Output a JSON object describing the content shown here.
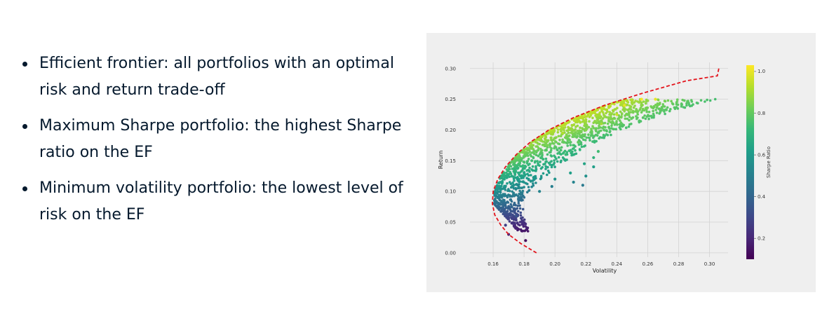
{
  "bullets": [
    "Efficient frontier: all portfolios with an optimal risk and return trade-off",
    "Maximum Sharpe portfolio: the highest Sharpe ratio on the EF",
    "Minimum volatility portfolio: the lowest level of risk on the EF"
  ],
  "chart_data": {
    "type": "scatter",
    "xlabel": "Volatility",
    "ylabel": "Return",
    "xlim": [
      0.145,
      0.312
    ],
    "ylim": [
      -0.007,
      0.31
    ],
    "x_ticks": [
      "0.16",
      "0.18",
      "0.20",
      "0.22",
      "0.24",
      "0.26",
      "0.28",
      "0.30"
    ],
    "y_ticks": [
      "0.00",
      "0.05",
      "0.10",
      "0.15",
      "0.20",
      "0.25",
      "0.30"
    ],
    "grid": true,
    "colorbar": {
      "label": "Sharpe Ratio",
      "range": [
        0.1,
        1.03
      ],
      "ticks": [
        "0.2",
        "0.4",
        "0.6",
        "0.8",
        "1.0"
      ],
      "colormap": [
        "#440154",
        "#482878",
        "#3e4989",
        "#31688e",
        "#26828e",
        "#1f9e89",
        "#35b779",
        "#6ece58",
        "#b5de2b",
        "#fde725"
      ]
    },
    "frontier": {
      "color": "#e3141c",
      "style": "dashed",
      "points": [
        [
          0.188,
          0.0
        ],
        [
          0.178,
          0.015
        ],
        [
          0.17,
          0.03
        ],
        [
          0.165,
          0.045
        ],
        [
          0.161,
          0.062
        ],
        [
          0.1595,
          0.08
        ],
        [
          0.16,
          0.1
        ],
        [
          0.163,
          0.12
        ],
        [
          0.168,
          0.14
        ],
        [
          0.175,
          0.16
        ],
        [
          0.184,
          0.18
        ],
        [
          0.196,
          0.2
        ],
        [
          0.212,
          0.22
        ],
        [
          0.232,
          0.24
        ],
        [
          0.257,
          0.26
        ],
        [
          0.285,
          0.28
        ],
        [
          0.305,
          0.288
        ],
        [
          0.306,
          0.3
        ]
      ]
    },
    "scatter_sample": [
      [
        0.17,
        0.03,
        0.2
      ],
      [
        0.181,
        0.02,
        0.12
      ],
      [
        0.168,
        0.045,
        0.28
      ],
      [
        0.175,
        0.06,
        0.35
      ],
      [
        0.172,
        0.075,
        0.4
      ],
      [
        0.178,
        0.09,
        0.45
      ],
      [
        0.19,
        0.1,
        0.52
      ],
      [
        0.2,
        0.12,
        0.58
      ],
      [
        0.21,
        0.13,
        0.62
      ],
      [
        0.22,
        0.125,
        0.57
      ],
      [
        0.225,
        0.14,
        0.62
      ],
      [
        0.219,
        0.145,
        0.64
      ],
      [
        0.207,
        0.16,
        0.73
      ],
      [
        0.215,
        0.18,
        0.8
      ],
      [
        0.22,
        0.2,
        0.86
      ],
      [
        0.23,
        0.21,
        0.9
      ],
      [
        0.24,
        0.225,
        0.96
      ],
      [
        0.245,
        0.24,
        1.0
      ],
      [
        0.256,
        0.25,
        1.02
      ],
      [
        0.265,
        0.25,
        1.0
      ],
      [
        0.195,
        0.175,
        0.84
      ],
      [
        0.205,
        0.195,
        0.92
      ],
      [
        0.185,
        0.15,
        0.74
      ],
      [
        0.18,
        0.13,
        0.64
      ],
      [
        0.176,
        0.11,
        0.53
      ],
      [
        0.218,
        0.11,
        0.48
      ],
      [
        0.212,
        0.115,
        0.52
      ],
      [
        0.225,
        0.155,
        0.7
      ],
      [
        0.228,
        0.165,
        0.74
      ],
      [
        0.198,
        0.108,
        0.5
      ]
    ]
  }
}
